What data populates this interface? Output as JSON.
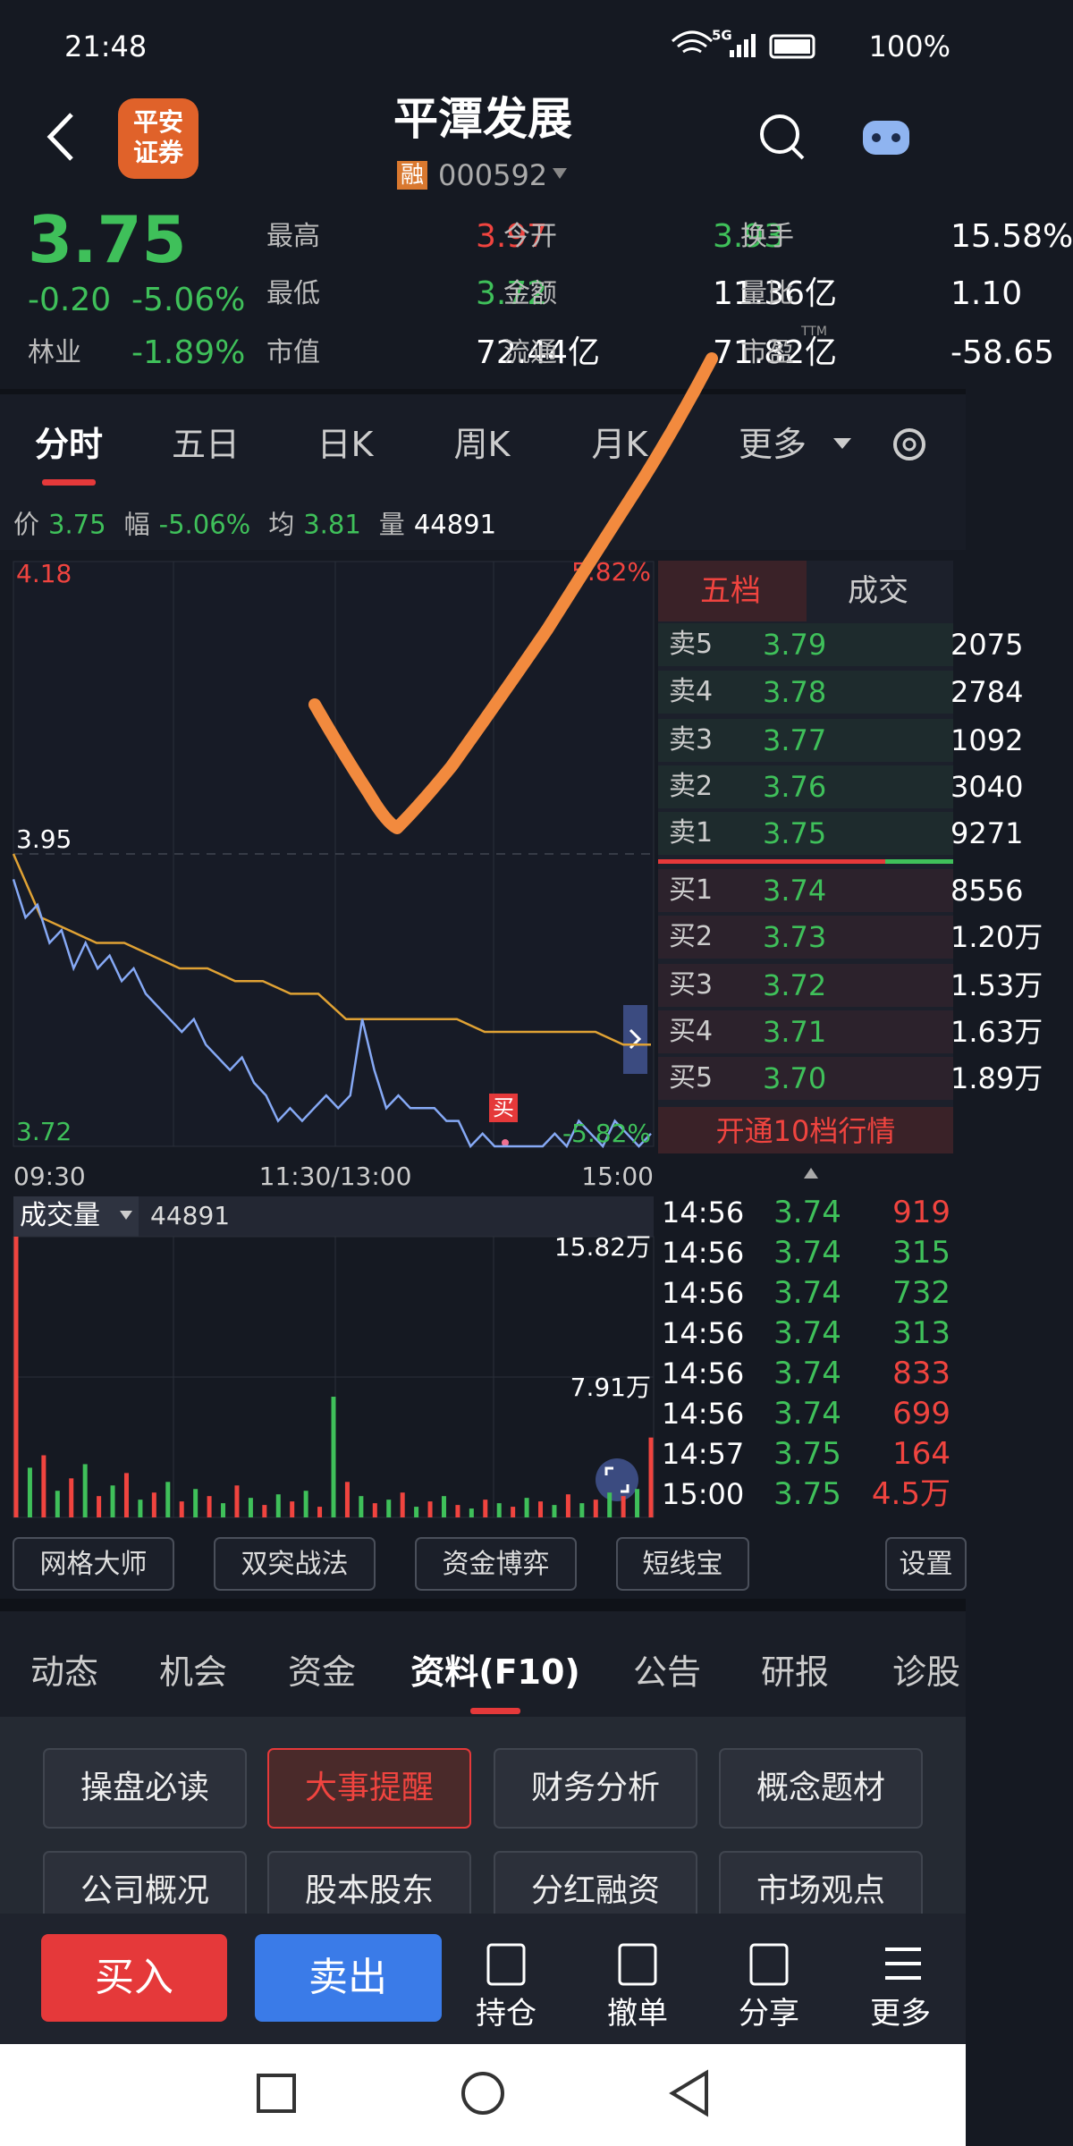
{
  "status_bar": {
    "time": "21:48",
    "network": "5G",
    "battery": "100%"
  },
  "header": {
    "logo": [
      "平安",
      "证券"
    ],
    "title": "平潭发展",
    "badge": "融",
    "code": "000592"
  },
  "quote": {
    "price": 3.75,
    "change": "-0.20",
    "change_pct": "-5.06%",
    "sector": "林业",
    "sector_pct": "-1.89%",
    "fields": [
      [
        {
          "label": "最高",
          "value": 3.97,
          "color": "#f0443f"
        },
        {
          "label": "最低",
          "value": 3.72,
          "color": "#3fc05a"
        },
        {
          "label": "市值",
          "value": "72.44亿",
          "color": "#ffffff"
        }
      ],
      [
        {
          "label": "今开",
          "value": 3.93,
          "color": "#3fc05a"
        },
        {
          "label": "金额",
          "value": "11.36亿",
          "color": "#ffffff"
        },
        {
          "label": "流通",
          "value": "71.82亿",
          "color": "#ffffff"
        }
      ],
      [
        {
          "label": "换手",
          "value": "15.58%",
          "color": "#ffffff"
        },
        {
          "label": "量比",
          "value": "1.10",
          "color": "#ffffff"
        },
        {
          "label": "市盈",
          "sup": "TTM",
          "value": "-58.65",
          "color": "#ffffff"
        }
      ]
    ]
  },
  "tabs": {
    "items": [
      "分时",
      "五日",
      "日K",
      "周K",
      "月K",
      "更多"
    ],
    "active": 0
  },
  "info": [
    {
      "label": "价",
      "value": "3.75",
      "color": "#3fc05a"
    },
    {
      "label": "幅",
      "value": "-5.06%",
      "color": "#3fc05a"
    },
    {
      "label": "均",
      "value": "3.81",
      "color": "#3fc05a"
    },
    {
      "label": "量",
      "value": "44891",
      "color": "#ffffff"
    }
  ],
  "intraday": {
    "ylim": [
      3.72,
      4.18
    ],
    "yticks": [
      3.72,
      3.95,
      4.18
    ],
    "pct_labels": [
      "5.82%",
      "-5.82%"
    ],
    "times": [
      "09:30",
      "11:30/13:00",
      "15:00"
    ],
    "price": [
      3.93,
      3.9,
      3.91,
      3.88,
      3.89,
      3.86,
      3.88,
      3.86,
      3.87,
      3.85,
      3.86,
      3.84,
      3.83,
      3.82,
      3.81,
      3.82,
      3.8,
      3.79,
      3.78,
      3.79,
      3.77,
      3.76,
      3.74,
      3.75,
      3.74,
      3.75,
      3.76,
      3.75,
      3.76,
      3.82,
      3.78,
      3.75,
      3.76,
      3.75,
      3.75,
      3.75,
      3.74,
      3.74,
      3.72,
      3.73,
      3.72,
      3.72,
      3.72,
      3.72,
      3.72,
      3.73,
      3.72,
      3.74,
      3.73,
      3.72,
      3.74,
      3.73,
      3.72,
      3.73
    ],
    "avg": [
      3.95,
      3.9,
      3.89,
      3.88,
      3.88,
      3.87,
      3.86,
      3.86,
      3.85,
      3.85,
      3.84,
      3.84,
      3.82,
      3.82,
      3.82,
      3.82,
      3.82,
      3.81,
      3.81,
      3.81,
      3.81,
      3.81,
      3.8,
      3.8
    ],
    "price_color": "#86a9f5",
    "avg_color": "#e0a234",
    "marker": "买"
  },
  "order_book": {
    "tabs": [
      "五档",
      "成交"
    ],
    "asks": [
      {
        "label": "卖5",
        "price": 3.79,
        "volume": 2075
      },
      {
        "label": "卖4",
        "price": 3.78,
        "volume": 2784
      },
      {
        "label": "卖3",
        "price": 3.77,
        "volume": 1092
      },
      {
        "label": "卖2",
        "price": 3.76,
        "volume": 3040
      },
      {
        "label": "卖1",
        "price": 3.75,
        "volume": 9271
      }
    ],
    "bids": [
      {
        "label": "买1",
        "price": 3.74,
        "volume": 8556
      },
      {
        "label": "买2",
        "price": 3.73,
        "volume": "1.20万"
      },
      {
        "label": "买3",
        "price": 3.72,
        "volume": "1.53万"
      },
      {
        "label": "买4",
        "price": 3.71,
        "volume": "1.63万"
      },
      {
        "label": "买5",
        "price": "3.70",
        "volume": "1.89万"
      }
    ],
    "upgrade": "开通10档行情"
  },
  "volume": {
    "label": "成交量",
    "total": 44891,
    "ylim": [
      0,
      158200
    ],
    "yticks": [
      {
        "value": 158200,
        "label": "15.82万"
      },
      {
        "value": 79100,
        "label": "7.91万"
      }
    ],
    "values": [
      158200,
      28000,
      35000,
      15000,
      22000,
      30000,
      12000,
      18000,
      25000,
      10000,
      14000,
      20000,
      9000,
      16000,
      12000,
      8000,
      18000,
      11000,
      7000,
      13000,
      9000,
      15000,
      6000,
      68000,
      20000,
      12000,
      8000,
      10000,
      14000,
      6000,
      9000,
      12000,
      7000,
      5000,
      10000,
      8000,
      6000,
      11000,
      9000,
      7000,
      13000,
      8000,
      10000,
      14000,
      12000,
      16000,
      45000
    ]
  },
  "trades": [
    {
      "time": "14:56",
      "price": 3.74,
      "volume": 919,
      "color": "#f0443f"
    },
    {
      "time": "14:56",
      "price": 3.74,
      "volume": 315,
      "color": "#3fc05a"
    },
    {
      "time": "14:56",
      "price": 3.74,
      "volume": 732,
      "color": "#3fc05a"
    },
    {
      "time": "14:56",
      "price": 3.74,
      "volume": 313,
      "color": "#3fc05a"
    },
    {
      "time": "14:56",
      "price": 3.74,
      "volume": 833,
      "color": "#f0443f"
    },
    {
      "time": "14:56",
      "price": 3.74,
      "volume": 699,
      "color": "#f0443f"
    },
    {
      "time": "14:57",
      "price": 3.75,
      "volume": 164,
      "color": "#f0443f"
    },
    {
      "time": "15:00",
      "price": 3.75,
      "volume": "4.5万",
      "color": "#f0443f"
    }
  ],
  "tools": [
    "网格大师",
    "双突战法",
    "资金博弈",
    "短线宝",
    "设置"
  ],
  "section_tabs": {
    "items": [
      "动态",
      "机会",
      "资金",
      "资料(F10)",
      "公告",
      "研报",
      "诊股"
    ],
    "active": 3
  },
  "f10": {
    "items": [
      "操盘必读",
      "大事提醒",
      "财务分析",
      "概念题材",
      "公司概况",
      "股本股东",
      "分红融资",
      "市场观点"
    ],
    "active": 1
  },
  "actions": {
    "buy": "买入",
    "sell": "卖出",
    "items": [
      "持仓",
      "撤单",
      "分享",
      "更多"
    ]
  }
}
